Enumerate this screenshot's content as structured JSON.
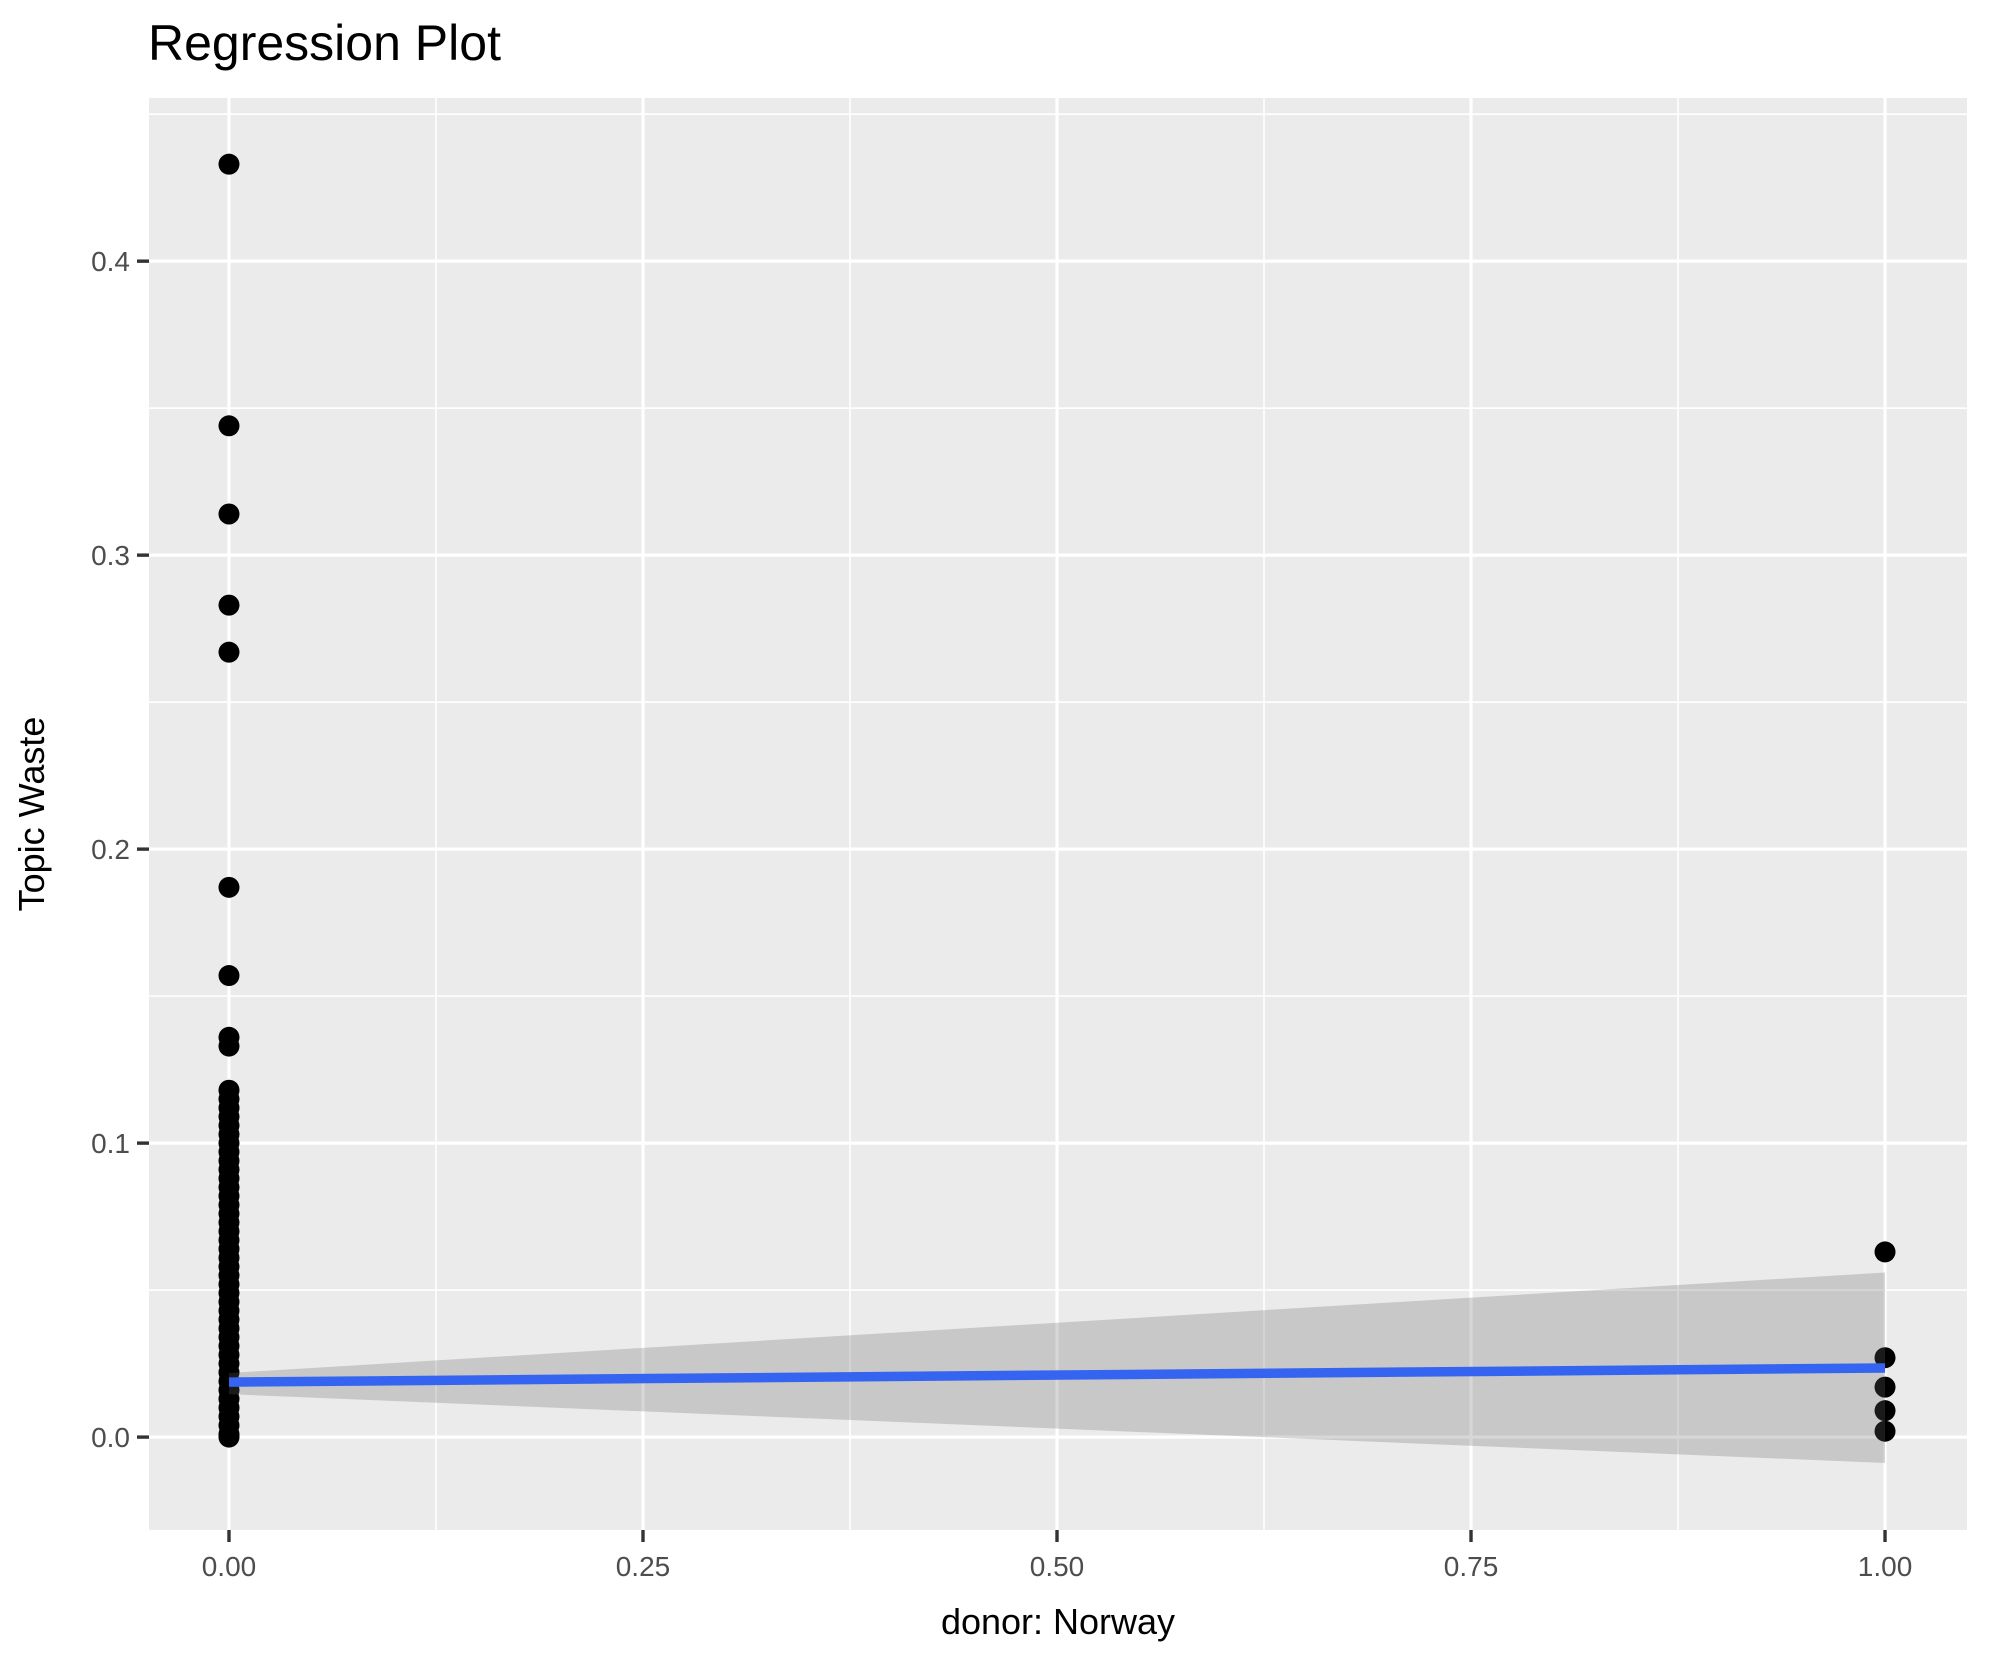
{
  "chart_data": {
    "type": "scatter",
    "title": "Regression Plot",
    "xlabel": "donor: Norway",
    "ylabel": "Topic Waste",
    "grid": true,
    "legend": "none",
    "xlim": [
      -0.0483,
      1.0495
    ],
    "ylim": [
      -0.0316,
      0.4555
    ],
    "x_ticks": {
      "values": [
        0,
        0.25,
        0.5,
        0.75,
        1.0
      ],
      "labels": [
        "0.00",
        "0.25",
        "0.50",
        "0.75",
        "1.00"
      ]
    },
    "y_ticks": {
      "values": [
        0.0,
        0.1,
        0.2,
        0.3,
        0.4
      ],
      "labels": [
        "0.0",
        "0.1",
        "0.2",
        "0.3",
        "0.4"
      ]
    },
    "x_minor_gridlines": [
      0.125,
      0.375,
      0.625,
      0.875
    ],
    "y_minor_gridlines": [
      0.05,
      0.15,
      0.25,
      0.35,
      0.45
    ],
    "series": [
      {
        "name": "observations at donor=0",
        "x": 0,
        "y": [
          0.433,
          0.344,
          0.314,
          0.283,
          0.267,
          0.187,
          0.157,
          0.136,
          0.133,
          0.118,
          0.115,
          0.112,
          0.109,
          0.106,
          0.103,
          0.1,
          0.097,
          0.094,
          0.091,
          0.088,
          0.085,
          0.082,
          0.079,
          0.076,
          0.073,
          0.07,
          0.067,
          0.064,
          0.061,
          0.058,
          0.055,
          0.052,
          0.049,
          0.046,
          0.043,
          0.04,
          0.037,
          0.034,
          0.031,
          0.028,
          0.025,
          0.022,
          0.019,
          0.016,
          0.013,
          0.01,
          0.007,
          0.004,
          0.001,
          0.0
        ]
      },
      {
        "name": "observations at donor=1",
        "x": 1,
        "y": [
          0.063,
          0.027,
          0.017,
          0.009,
          0.002
        ]
      }
    ],
    "regression_line": {
      "x": [
        0,
        1
      ],
      "y": [
        0.0187,
        0.0235
      ]
    },
    "confidence_band": {
      "x": [
        0,
        1
      ],
      "upper": [
        0.0218,
        0.056
      ],
      "lower": [
        0.0146,
        -0.0088
      ]
    },
    "colors": {
      "panel_background": "#EBEBEB",
      "gridline": "#FFFFFF",
      "point": "#000000",
      "regression_line": "#3564F0",
      "confidence_band_fill": "rgba(102,102,102,0.26)",
      "tick_mark": "#333333",
      "tick_label": "#4D4D4D",
      "title_text": "#000000"
    }
  }
}
